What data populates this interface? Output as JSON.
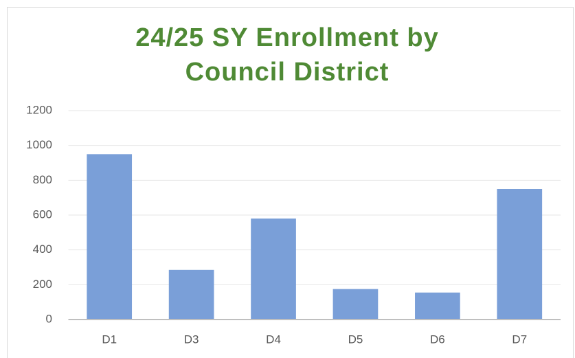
{
  "chart_data": {
    "type": "bar",
    "title": "24/25 SY Enrollment by Council District",
    "categories": [
      "D1",
      "D3",
      "D4",
      "D5",
      "D6",
      "D7"
    ],
    "values": [
      950,
      285,
      580,
      175,
      155,
      750
    ],
    "color": "#7a9fd8",
    "ylim": [
      0,
      1200
    ],
    "yticks": [
      0,
      200,
      400,
      600,
      800,
      1000,
      1200
    ],
    "grid": true
  }
}
